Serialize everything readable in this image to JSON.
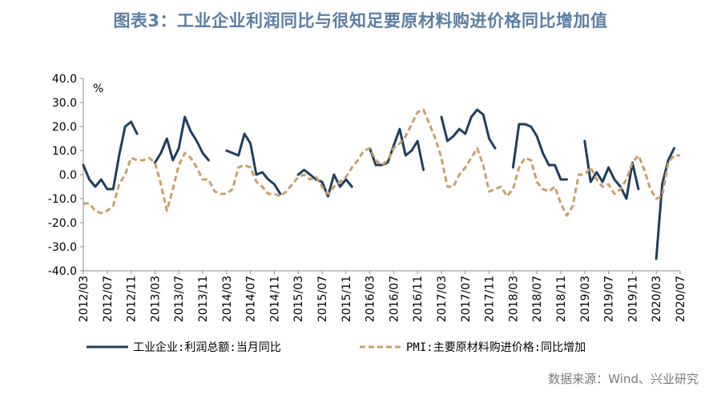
{
  "title": "图表3：工业企业利润同比与很知足要原材料购进价格同比增加值",
  "source": "数据来源：Wind、兴业研究",
  "colors": {
    "profit": "#1f3e5c",
    "pmi": "#c8a06b",
    "title": "#5b7ea1"
  },
  "chart_data": {
    "type": "line",
    "title": "图表3：工业企业利润同比与很知足要原材料购进价格同比增加值",
    "ylabel": "%",
    "ylim": [
      -40,
      40
    ],
    "yticks": [
      "40.0",
      "30.0",
      "20.0",
      "10.0",
      "0.0",
      "-10.0",
      "-20.0",
      "-30.0",
      "-40.0"
    ],
    "xlim": [
      "2012/03",
      "2020/07"
    ],
    "xticks": [
      "2012/03",
      "2012/07",
      "2012/11",
      "2013/03",
      "2013/07",
      "2013/11",
      "2014/03",
      "2014/07",
      "2014/11",
      "2015/03",
      "2015/07",
      "2015/11",
      "2016/03",
      "2016/07",
      "2016/11",
      "2017/03",
      "2017/07",
      "2017/11",
      "2018/03",
      "2018/07",
      "2018/11",
      "2019/03",
      "2019/07",
      "2019/11",
      "2020/03",
      "2020/07"
    ],
    "legend_position": "bottom",
    "series": [
      {
        "name": "工业企业:利润总额:当月同比",
        "style": "solid",
        "points": [
          [
            "2012/03",
            4
          ],
          [
            "2012/04",
            -2
          ],
          [
            "2012/05",
            -5
          ],
          [
            "2012/06",
            -2
          ],
          [
            "2012/07",
            -6
          ],
          [
            "2012/08",
            -6
          ],
          [
            "2012/09",
            8
          ],
          [
            "2012/10",
            20
          ],
          [
            "2012/11",
            22
          ],
          [
            "2012/12",
            17
          ],
          null,
          [
            "2013/03",
            5
          ],
          [
            "2013/04",
            9
          ],
          [
            "2013/05",
            15
          ],
          [
            "2013/06",
            6
          ],
          [
            "2013/07",
            11
          ],
          [
            "2013/08",
            24
          ],
          [
            "2013/09",
            18
          ],
          [
            "2013/10",
            14
          ],
          [
            "2013/11",
            9
          ],
          [
            "2013/12",
            6
          ],
          null,
          [
            "2014/03",
            10
          ],
          [
            "2014/04",
            9
          ],
          [
            "2014/05",
            8
          ],
          [
            "2014/06",
            17
          ],
          [
            "2014/07",
            13
          ],
          [
            "2014/08",
            0
          ],
          [
            "2014/09",
            1
          ],
          [
            "2014/10",
            -2
          ],
          [
            "2014/11",
            -4
          ],
          [
            "2014/12",
            -8
          ],
          null,
          [
            "2015/03",
            0
          ],
          [
            "2015/04",
            2
          ],
          [
            "2015/05",
            0
          ],
          [
            "2015/06",
            -2
          ],
          [
            "2015/07",
            -3
          ],
          [
            "2015/08",
            -9
          ],
          [
            "2015/09",
            0
          ],
          [
            "2015/10",
            -5
          ],
          [
            "2015/11",
            -2
          ],
          [
            "2015/12",
            -5
          ],
          null,
          [
            "2016/03",
            11
          ],
          [
            "2016/04",
            4
          ],
          [
            "2016/05",
            4
          ],
          [
            "2016/06",
            5
          ],
          [
            "2016/07",
            12
          ],
          [
            "2016/08",
            19
          ],
          [
            "2016/09",
            8
          ],
          [
            "2016/10",
            10
          ],
          [
            "2016/11",
            14
          ],
          [
            "2016/12",
            2
          ],
          null,
          [
            "2017/03",
            24
          ],
          [
            "2017/04",
            14
          ],
          [
            "2017/05",
            16
          ],
          [
            "2017/06",
            19
          ],
          [
            "2017/07",
            17
          ],
          [
            "2017/08",
            24
          ],
          [
            "2017/09",
            27
          ],
          [
            "2017/10",
            25
          ],
          [
            "2017/11",
            15
          ],
          [
            "2017/12",
            11
          ],
          null,
          [
            "2018/03",
            3
          ],
          [
            "2018/04",
            21
          ],
          [
            "2018/05",
            21
          ],
          [
            "2018/06",
            20
          ],
          [
            "2018/07",
            16
          ],
          [
            "2018/08",
            9
          ],
          [
            "2018/09",
            4
          ],
          [
            "2018/10",
            4
          ],
          [
            "2018/11",
            -2
          ],
          [
            "2018/12",
            -2
          ],
          null,
          [
            "2019/03",
            14
          ],
          [
            "2019/04",
            -3
          ],
          [
            "2019/05",
            1
          ],
          [
            "2019/06",
            -3
          ],
          [
            "2019/07",
            3
          ],
          [
            "2019/08",
            -2
          ],
          [
            "2019/09",
            -5
          ],
          [
            "2019/10",
            -10
          ],
          [
            "2019/11",
            5
          ],
          [
            "2019/12",
            -6
          ],
          null,
          [
            "2020/03",
            -35
          ],
          [
            "2020/04",
            -4
          ],
          [
            "2020/05",
            6
          ],
          [
            "2020/06",
            11
          ]
        ]
      },
      {
        "name": "PMI:主要原材料购进价格:同比增加",
        "style": "dashed",
        "points": [
          [
            "2012/03",
            -12
          ],
          [
            "2012/04",
            -12
          ],
          [
            "2012/05",
            -15
          ],
          [
            "2012/06",
            -16
          ],
          [
            "2012/07",
            -15
          ],
          [
            "2012/08",
            -13
          ],
          [
            "2012/09",
            -4
          ],
          [
            "2012/10",
            0
          ],
          [
            "2012/11",
            7
          ],
          [
            "2012/12",
            6
          ],
          [
            "2013/01",
            6
          ],
          [
            "2013/02",
            7
          ],
          [
            "2013/03",
            5
          ],
          [
            "2013/04",
            -4
          ],
          [
            "2013/05",
            -15
          ],
          [
            "2013/06",
            -6
          ],
          [
            "2013/07",
            4
          ],
          [
            "2013/08",
            9
          ],
          [
            "2013/09",
            7
          ],
          [
            "2013/10",
            3
          ],
          [
            "2013/11",
            -2
          ],
          [
            "2013/12",
            -2
          ],
          [
            "2014/01",
            -7
          ],
          [
            "2014/02",
            -8
          ],
          [
            "2014/03",
            -8
          ],
          [
            "2014/04",
            -6
          ],
          [
            "2014/05",
            3
          ],
          [
            "2014/06",
            4
          ],
          [
            "2014/07",
            3
          ],
          [
            "2014/08",
            -3
          ],
          [
            "2014/09",
            -5
          ],
          [
            "2014/10",
            -8
          ],
          [
            "2014/11",
            -8
          ],
          [
            "2014/12",
            -9
          ],
          [
            "2015/01",
            -7
          ],
          [
            "2015/02",
            -4
          ],
          [
            "2015/03",
            -1
          ],
          [
            "2015/04",
            0
          ],
          [
            "2015/05",
            -2
          ],
          [
            "2015/06",
            -1
          ],
          [
            "2015/07",
            -5
          ],
          [
            "2015/08",
            -8
          ],
          [
            "2015/09",
            -5
          ],
          [
            "2015/10",
            -3
          ],
          [
            "2015/11",
            -1
          ],
          [
            "2015/12",
            3
          ],
          [
            "2016/01",
            6
          ],
          [
            "2016/02",
            10
          ],
          [
            "2016/03",
            11
          ],
          [
            "2016/04",
            6
          ],
          [
            "2016/05",
            4
          ],
          [
            "2016/06",
            6
          ],
          [
            "2016/07",
            11
          ],
          [
            "2016/08",
            13
          ],
          [
            "2016/09",
            16
          ],
          [
            "2016/10",
            21
          ],
          [
            "2016/11",
            26
          ],
          [
            "2016/12",
            27
          ],
          [
            "2017/01",
            21
          ],
          [
            "2017/02",
            15
          ],
          [
            "2017/03",
            7
          ],
          [
            "2017/04",
            -5
          ],
          [
            "2017/05",
            -5
          ],
          [
            "2017/06",
            0
          ],
          [
            "2017/07",
            3
          ],
          [
            "2017/08",
            7
          ],
          [
            "2017/09",
            11
          ],
          [
            "2017/10",
            4
          ],
          [
            "2017/11",
            -7
          ],
          [
            "2017/12",
            -6
          ],
          [
            "2018/01",
            -5
          ],
          [
            "2018/02",
            -9
          ],
          [
            "2018/03",
            -6
          ],
          [
            "2018/04",
            3
          ],
          [
            "2018/05",
            7
          ],
          [
            "2018/06",
            6
          ],
          [
            "2018/07",
            -3
          ],
          [
            "2018/08",
            -6
          ],
          [
            "2018/09",
            -7
          ],
          [
            "2018/10",
            -5
          ],
          [
            "2018/11",
            -12
          ],
          [
            "2018/12",
            -17
          ],
          [
            "2019/01",
            -13
          ],
          [
            "2019/02",
            0
          ],
          [
            "2019/03",
            0
          ],
          [
            "2019/04",
            3
          ],
          [
            "2019/05",
            -2
          ],
          [
            "2019/06",
            -5
          ],
          [
            "2019/07",
            -4
          ],
          [
            "2019/08",
            -8
          ],
          [
            "2019/09",
            -6
          ],
          [
            "2019/10",
            -2
          ],
          [
            "2019/11",
            5
          ],
          [
            "2019/12",
            8
          ],
          [
            "2020/01",
            2
          ],
          [
            "2020/02",
            -6
          ],
          [
            "2020/03",
            -10
          ],
          [
            "2020/04",
            -9
          ],
          [
            "2020/05",
            5
          ],
          [
            "2020/06",
            8
          ],
          [
            "2020/07",
            8
          ]
        ]
      }
    ]
  }
}
